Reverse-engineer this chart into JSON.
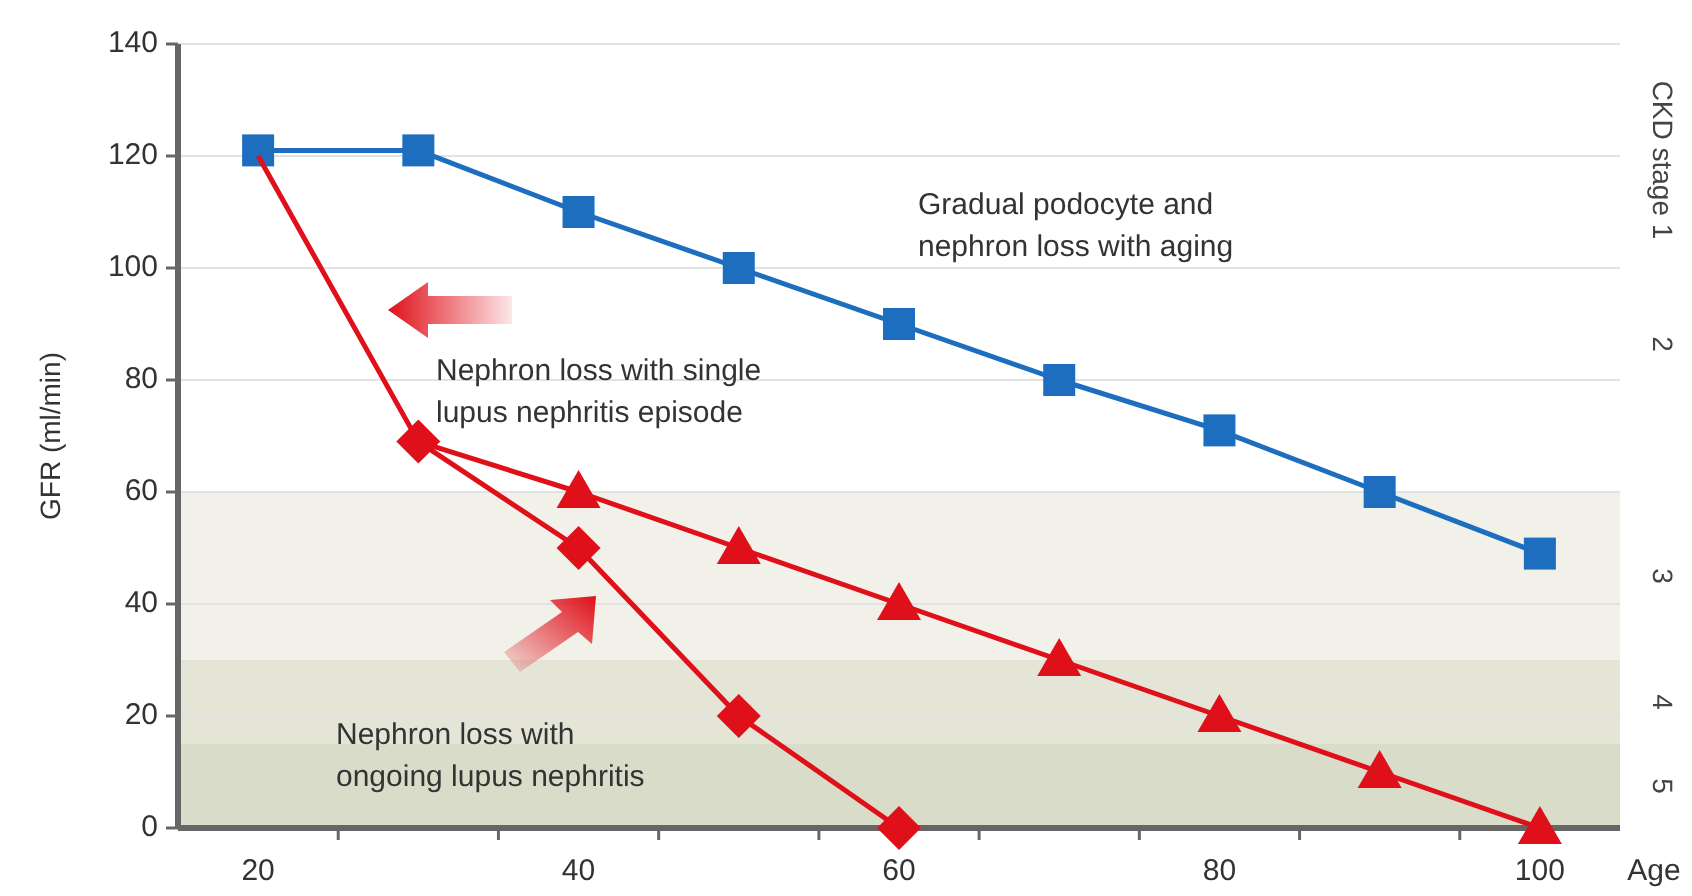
{
  "chart_data": {
    "type": "line",
    "ylabel": "GFR (ml/min)",
    "xlabel": "Age",
    "xlim": [
      15,
      105
    ],
    "xticks": [
      20,
      {
        "value": 25,
        "label": null
      },
      {
        "value": 35,
        "label": null
      },
      40,
      {
        "value": 45,
        "label": null
      },
      {
        "value": 55,
        "label": null
      },
      60,
      {
        "value": 65,
        "label": null
      },
      {
        "value": 75,
        "label": null
      },
      80,
      {
        "value": 85,
        "label": null
      },
      {
        "value": 95,
        "label": null
      },
      100
    ],
    "ylim": [
      0,
      140
    ],
    "yticks": [
      0,
      20,
      40,
      60,
      80,
      100,
      120,
      140
    ],
    "grid": "y",
    "line_style": "solid",
    "series": [
      {
        "color": "#1e6ec0",
        "marker": "square",
        "x": [
          20,
          30,
          40,
          50,
          60,
          70,
          80,
          90,
          100
        ],
        "values": [
          121,
          121,
          110,
          100,
          90,
          80,
          71,
          60,
          49
        ]
      },
      {
        "color": "#e0101a",
        "x": [
          20,
          30,
          40
        ],
        "values": [
          120,
          69,
          60
        ]
      },
      {
        "color": "#e0101a",
        "marker": "triangle",
        "x": [
          40,
          50,
          60,
          70,
          80,
          90,
          100
        ],
        "values": [
          60,
          50,
          40,
          30,
          20,
          10,
          0
        ]
      },
      {
        "color": "#e0101a",
        "marker": "diamond",
        "x": [
          30,
          40,
          50,
          60
        ],
        "values": [
          69,
          50,
          20,
          0
        ]
      }
    ],
    "bands": [
      {
        "axis": "y",
        "from": 30,
        "to": 60,
        "label": "3",
        "color": "#f1f1e9"
      },
      {
        "axis": "y",
        "from": 15,
        "to": 30,
        "label": "4",
        "color": "#e4e5d7"
      },
      {
        "axis": "y",
        "from": 0,
        "to": 15,
        "label": "5",
        "color": "#d9dcc9"
      }
    ],
    "annotations": [
      "Gradual podocyte and\nnephron loss with aging",
      "Nephron loss with single\nlupus nephritis episode",
      "Nephron loss with\nongoing lupus nephritis",
      "CKD stage 1",
      "2"
    ]
  }
}
